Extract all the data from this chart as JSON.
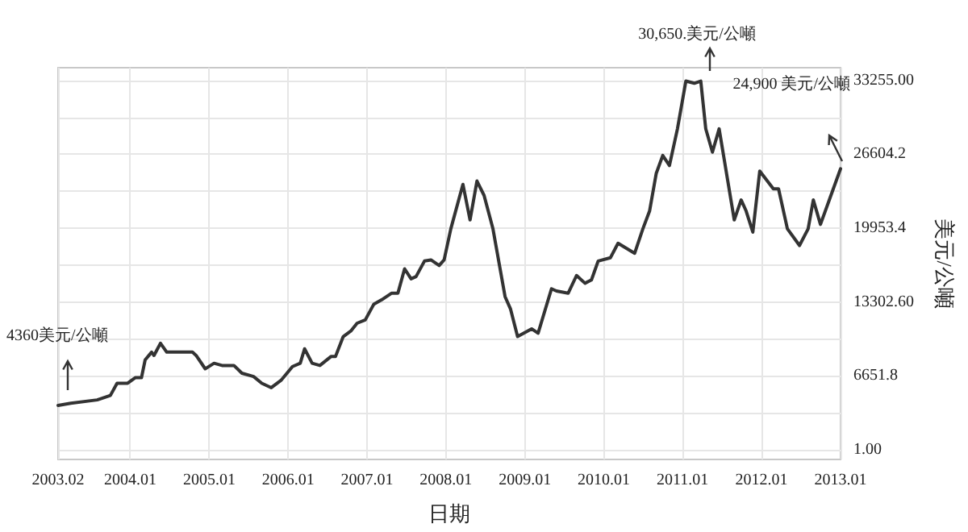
{
  "chart_data": {
    "type": "line",
    "xlabel": "日期",
    "ylabel": "美元/公噸",
    "x": [
      "2003-02-01",
      "2003-04-01",
      "2003-08-01",
      "2003-10-01",
      "2003-11-01",
      "2003-12-20",
      "2004-01-24",
      "2004-02-22",
      "2004-03-10",
      "2004-04-09",
      "2004-04-20",
      "2004-05-20",
      "2004-06-18",
      "2004-10-15",
      "2004-11-01",
      "2004-12-13",
      "2005-01-23",
      "2005-03-01",
      "2005-04-25",
      "2005-06-01",
      "2005-07-25",
      "2005-09-01",
      "2005-10-15",
      "2005-12-01",
      "2006-01-21",
      "2006-02-26",
      "2006-03-18",
      "2006-04-22",
      "2006-05-28",
      "2006-07-18",
      "2006-08-08",
      "2006-09-13",
      "2006-10-18",
      "2006-11-16",
      "2006-12-24",
      "2007-02-01",
      "2007-03-09",
      "2007-04-24",
      "2007-05-24",
      "2007-06-24",
      "2007-07-24",
      "2007-08-16",
      "2007-09-24",
      "2007-10-24",
      "2007-12-01",
      "2007-12-24",
      "2008-01-24",
      "2008-03-20",
      "2008-04-22",
      "2008-05-24",
      "2008-06-26",
      "2008-08-06",
      "2008-10-01",
      "2008-10-26",
      "2008-11-28",
      "2009-02-01",
      "2009-03-03",
      "2009-05-04",
      "2009-05-27",
      "2009-07-20",
      "2009-08-28",
      "2009-10-06",
      "2009-11-05",
      "2009-12-06",
      "2010-02-01",
      "2010-03-08",
      "2010-05-24",
      "2010-07-01",
      "2010-08-01",
      "2010-09-01",
      "2010-10-01",
      "2010-11-01",
      "2010-12-08",
      "2011-01-16",
      "2011-02-24",
      "2011-03-26",
      "2011-04-18",
      "2011-05-19",
      "2011-06-19",
      "2011-08-28",
      "2011-09-29",
      "2011-10-22",
      "2011-11-22",
      "2011-12-24",
      "2012-02-25",
      "2012-03-20",
      "2012-04-30",
      "2012-06-25",
      "2012-08-04",
      "2012-08-28",
      "2012-09-30",
      "2012-11-10",
      "2013-01-01"
    ],
    "series": [
      {
        "color": "#333333",
        "values": [
          4000,
          4200,
          4500,
          4900,
          6000,
          6000,
          6500,
          6500,
          8100,
          8800,
          8500,
          9600,
          8800,
          8800,
          8500,
          7300,
          7800,
          7600,
          7600,
          6900,
          6600,
          6000,
          5600,
          6300,
          7500,
          7800,
          9100,
          7800,
          7600,
          8400,
          8400,
          10200,
          10700,
          11400,
          11700,
          13100,
          13500,
          14100,
          14100,
          16300,
          15400,
          15600,
          17000,
          17100,
          16600,
          17100,
          19900,
          23900,
          20700,
          24200,
          22900,
          19900,
          13800,
          12700,
          10200,
          10900,
          10500,
          14500,
          14300,
          14100,
          15700,
          15000,
          15300,
          17000,
          17300,
          18600,
          17700,
          19900,
          21500,
          24900,
          26500,
          25600,
          28900,
          33200,
          33000,
          33200,
          28900,
          26800,
          28900,
          20700,
          22500,
          21500,
          19600,
          25100,
          23500,
          23500,
          19900,
          18400,
          19900,
          22500,
          20300,
          22500,
          25300
        ]
      }
    ],
    "xlim": [
      "2003-02-01",
      "2013-01-01"
    ],
    "xticks": [
      {
        "value": "2003-02",
        "label": "2003.02"
      },
      {
        "value": "2004-01",
        "label": "2004.01"
      },
      {
        "value": "2005-01",
        "label": "2005.01"
      },
      {
        "value": "2006-01",
        "label": "2006.01"
      },
      {
        "value": "2007-01",
        "label": "2007.01"
      },
      {
        "value": "2008-01",
        "label": "2008.01"
      },
      {
        "value": "2009-01",
        "label": "2009.01"
      },
      {
        "value": "2010-01",
        "label": "2010.01"
      },
      {
        "value": "2011-01",
        "label": "2011.01"
      },
      {
        "value": "2012-01",
        "label": "2012.01"
      },
      {
        "value": "2013-01",
        "label": "2013.01"
      }
    ],
    "ylim": [
      -860,
      34400
    ],
    "yticks": [
      {
        "value": 1,
        "label": "1.00"
      },
      {
        "value": 3326.4,
        "label": null
      },
      6651.8,
      {
        "value": 9977.2,
        "label": null
      },
      {
        "value": 13302.6,
        "label": "13302.60"
      },
      {
        "value": 16628,
        "label": null
      },
      19953.4,
      {
        "value": 23278.8,
        "label": null
      },
      26604.2,
      {
        "value": 29929.6,
        "label": null
      },
      {
        "value": 33255,
        "label": "33255.00"
      }
    ],
    "grid": true,
    "marker": "none",
    "line_style": "solid",
    "annotations": [
      "4360美元/公噸",
      "30,650.美元/公噸",
      "24,900 美元/公噸"
    ]
  }
}
